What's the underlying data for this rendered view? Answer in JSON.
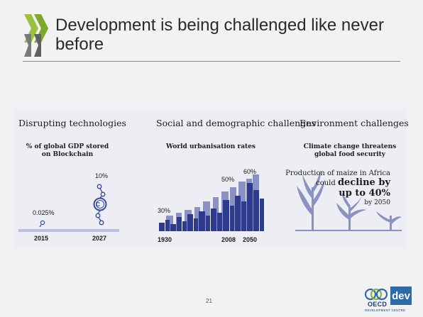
{
  "slide": {
    "title": "Development is being challenged like never before",
    "page_number": "21"
  },
  "panel": {
    "tech": {
      "heading": "Disrupting technologies",
      "subtitle_l1": "% of global GDP stored",
      "subtitle_l2": "on Blockchain",
      "values": [
        "0.025%",
        "10%"
      ],
      "years": [
        "2015",
        "2027"
      ]
    },
    "social": {
      "heading": "Social and demographic challenges",
      "subtitle": "World urbanisation rates",
      "values": [
        "30%",
        "50%",
        "60%"
      ],
      "years": [
        "1930",
        "2008",
        "2050"
      ]
    },
    "env": {
      "heading": "Environment challenges",
      "subtitle_l1": "Climate change threatens",
      "subtitle_l2": "global food security",
      "line1": "Production of maize in Africa",
      "line2_a": "could ",
      "line2_b": "decline by",
      "line3": "up to 40%",
      "line4": "by 2050"
    }
  },
  "logo": {
    "oecd": "OECD",
    "dev": "dev",
    "sub": "DEVELOPMENT CENTRE"
  },
  "colors": {
    "accent_green": "#8cb43a",
    "navy": "#2e3a8c",
    "light_navy": "#8a92c4",
    "panel_bg": "#edeef4"
  }
}
